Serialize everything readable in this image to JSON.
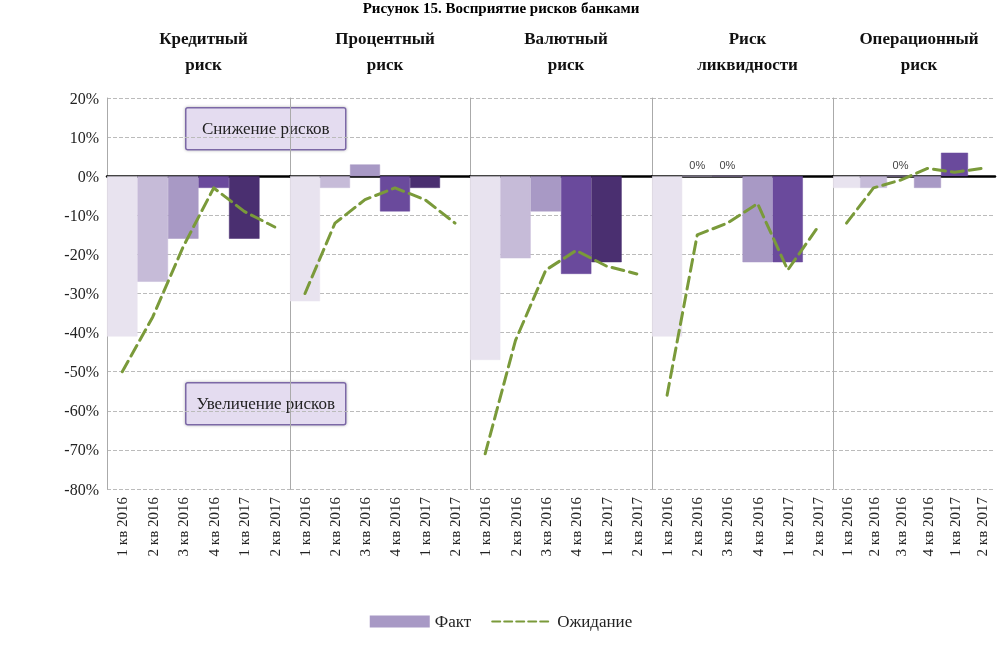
{
  "chart_data": [
    {
      "type": "bar",
      "title": "Кредитный риск",
      "categories": [
        "1 кв 2016",
        "2 кв 2016",
        "3 кв 2016",
        "4 кв 2016",
        "1 кв 2017",
        "2 кв 2017"
      ],
      "ylim": [
        -80,
        20
      ],
      "yticks": [
        {
          "value": -80,
          "label": "-80%"
        },
        {
          "value": -70,
          "label": "-70%"
        },
        {
          "value": -60,
          "label": "-60%"
        },
        {
          "value": -50,
          "label": "-50%"
        },
        {
          "value": -40,
          "label": "-40%"
        },
        {
          "value": -30,
          "label": "-30%"
        },
        {
          "value": -20,
          "label": "-20%"
        },
        {
          "value": -10,
          "label": "-10%"
        },
        {
          "value": 0,
          "label": "0%"
        },
        {
          "value": 10,
          "label": "10%"
        },
        {
          "value": 20,
          "label": "20%"
        }
      ],
      "grid": "y",
      "annotations": [
        "Рисунок 15. Восприятие рисков банками",
        "Снижение рисков",
        "Увеличение рисков"
      ],
      "series": [
        {
          "color": "#a899c5",
          "colors": [
            "#e8e3ef",
            "#c6bbd8",
            "#a899c5",
            "#6a4a9c",
            "#4a2f70",
            "#3a2358"
          ],
          "values": [
            -41,
            -27,
            -16,
            -3,
            -16,
            null
          ]
        },
        {
          "type": "line",
          "color": "#7a9a3a",
          "line_style": "dashed",
          "marker": "none",
          "values": [
            -50,
            -36,
            -18,
            -3,
            -9,
            -13
          ]
        }
      ]
    },
    {
      "type": "bar",
      "title": "Процентный риск",
      "categories": [
        "1 кв 2016",
        "2 кв 2016",
        "3 кв 2016",
        "4 кв 2016",
        "1 кв 2017",
        "2 кв 2017"
      ],
      "ylim": [
        -80,
        20
      ],
      "yticks": [
        -80,
        -70,
        -60,
        -50,
        -40,
        -30,
        -20,
        -10,
        0,
        10,
        20
      ],
      "grid": "y",
      "tick_labels": "x",
      "series": [
        {
          "color": "#a899c5",
          "colors": [
            "#e8e3ef",
            "#c6bbd8",
            "#a899c5",
            "#6a4a9c",
            "#4a2f70",
            "#3a2358"
          ],
          "values": [
            -32,
            -3,
            3,
            -9,
            -3,
            null
          ]
        },
        {
          "type": "line",
          "color": "#7a9a3a",
          "line_style": "dashed",
          "marker": "none",
          "values": [
            -30,
            -12,
            -6,
            -3,
            -6,
            -12
          ]
        }
      ]
    },
    {
      "type": "bar",
      "title": "Валютный риск",
      "categories": [
        "1 кв 2016",
        "2 кв 2016",
        "3 кв 2016",
        "4 кв 2016",
        "1 кв 2017",
        "2 кв 2017"
      ],
      "ylim": [
        -80,
        20
      ],
      "yticks": [
        -80,
        -70,
        -60,
        -50,
        -40,
        -30,
        -20,
        -10,
        0,
        10,
        20
      ],
      "grid": "y",
      "tick_labels": "x",
      "legend": "bottom",
      "series": [
        {
          "name": "Факт",
          "color": "#a899c5",
          "colors": [
            "#e8e3ef",
            "#c6bbd8",
            "#a899c5",
            "#6a4a9c",
            "#4a2f70",
            "#3a2358"
          ],
          "values": [
            -47,
            -21,
            -9,
            -25,
            -22,
            null
          ]
        },
        {
          "name": "Ожидание",
          "type": "line",
          "color": "#7a9a3a",
          "line_style": "dashed",
          "marker": "none",
          "values": [
            -71,
            -42,
            -24,
            -19,
            -23,
            -25
          ]
        }
      ]
    },
    {
      "type": "bar",
      "title": "Риск ликвидности",
      "categories": [
        "1 кв 2016",
        "2 кв 2016",
        "3 кв 2016",
        "4 кв 2016",
        "1 кв 2017",
        "2 кв 2017"
      ],
      "ylim": [
        -80,
        20
      ],
      "yticks": [
        -80,
        -70,
        -60,
        -50,
        -40,
        -30,
        -20,
        -10,
        0,
        10,
        20
      ],
      "grid": "y",
      "tick_labels": "x",
      "series": [
        {
          "color": "#a899c5",
          "colors": [
            "#e8e3ef",
            "#c6bbd8",
            "#a899c5",
            "#a899c5",
            "#6a4a9c",
            "#3a2358"
          ],
          "values": [
            -41,
            0,
            0,
            -22,
            -22,
            null
          ],
          "value_labels": [
            null,
            "0%",
            "0%",
            null,
            null,
            null
          ]
        },
        {
          "type": "line",
          "color": "#7a9a3a",
          "line_style": "dashed",
          "marker": "none",
          "values": [
            -56,
            -15,
            -12,
            -7,
            -24,
            -13
          ]
        }
      ]
    },
    {
      "type": "bar",
      "title": "Операционный риск",
      "categories": [
        "1 кв 2016",
        "2 кв 2016",
        "3 кв 2016",
        "4 кв 2016",
        "1 кв 2017",
        "2 кв 2017"
      ],
      "ylim": [
        -80,
        20
      ],
      "yticks": [
        -80,
        -70,
        -60,
        -50,
        -40,
        -30,
        -20,
        -10,
        0,
        10,
        20
      ],
      "grid": "y",
      "tick_labels": "x",
      "series": [
        {
          "color": "#a899c5",
          "colors": [
            "#e8e3ef",
            "#c6bbd8",
            "#a899c5",
            "#a899c5",
            "#6a4a9c",
            "#3a2358"
          ],
          "values": [
            -3,
            -3,
            0,
            -3,
            6,
            null
          ],
          "value_labels": [
            null,
            null,
            "0%",
            null,
            null,
            null
          ]
        },
        {
          "type": "line",
          "color": "#7a9a3a",
          "line_style": "dashed",
          "marker": "none",
          "values": [
            -12,
            -3,
            -1,
            2,
            1,
            2
          ]
        }
      ]
    }
  ]
}
